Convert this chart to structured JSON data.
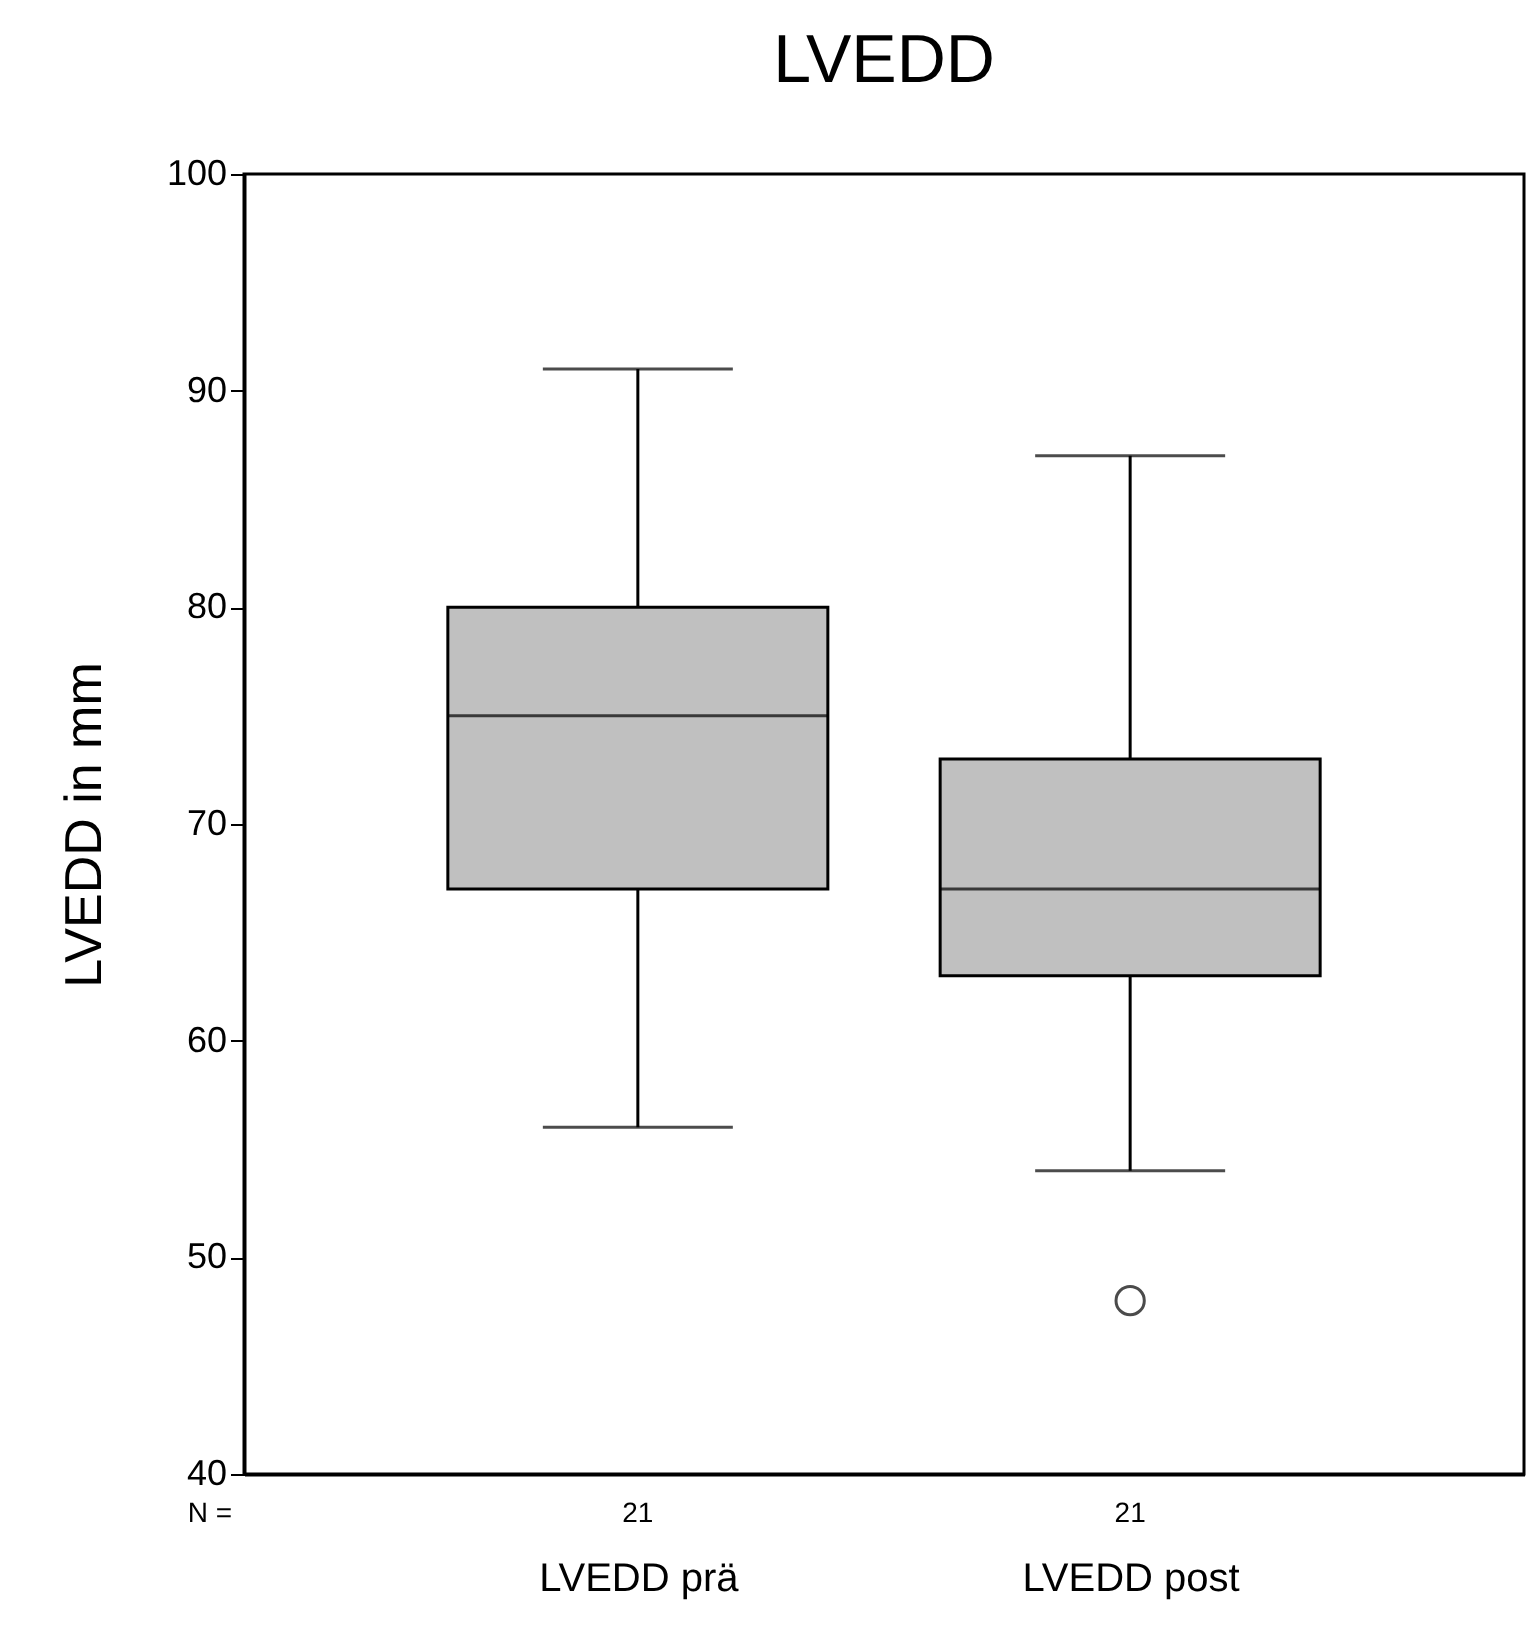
{
  "chart_data": {
    "type": "box",
    "title": "LVEDD",
    "ylabel": "LVEDD in mm",
    "categories": [
      "LVEDD prä",
      "LVEDD post"
    ],
    "boxes": [
      {
        "low": 56,
        "q1": 67,
        "median": 75,
        "q3": 80,
        "high": 91
      },
      {
        "low": 54,
        "q1": 63,
        "median": 67,
        "q3": 73,
        "high": 87,
        "outliers": [
          48
        ]
      }
    ],
    "color": "#c0c0c0",
    "ylim": [
      40,
      100
    ],
    "yticks": [
      40,
      50,
      60,
      70,
      80,
      90,
      100
    ],
    "grid": false,
    "annotations": [
      "N =",
      "21",
      "21"
    ]
  }
}
